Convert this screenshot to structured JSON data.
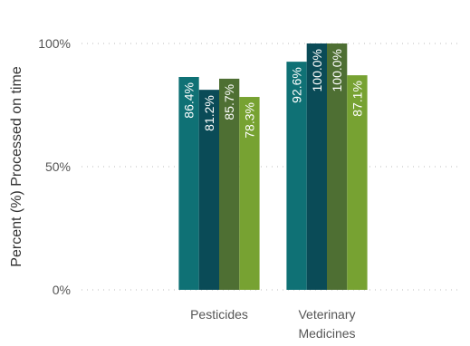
{
  "chart_data": {
    "type": "bar",
    "y_label": "Percent (%) Processed on time",
    "categories": [
      "Pesticides",
      [
        "Veterinary",
        "Medicines"
      ]
    ],
    "series": [
      {
        "color": "#0f7175",
        "values": [
          86.4,
          92.6
        ],
        "value_labels": [
          "86.4%",
          "92.6%"
        ]
      },
      {
        "color": "#0a4b57",
        "values": [
          81.2,
          100.0
        ],
        "value_labels": [
          "81.2%",
          "100.0%"
        ]
      },
      {
        "color": "#4e6f33",
        "values": [
          85.7,
          100.0
        ],
        "value_labels": [
          "85.7%",
          "100.0%"
        ]
      },
      {
        "color": "#77a232",
        "values": [
          78.3,
          87.1
        ],
        "value_labels": [
          "78.3%",
          "87.1%"
        ]
      }
    ],
    "ylim": [
      0,
      100
    ],
    "yticks": [
      {
        "value": 0,
        "label": "0%"
      },
      {
        "value": 50,
        "label": "50%"
      },
      {
        "value": 100,
        "label": "100%"
      }
    ],
    "grid": true
  }
}
